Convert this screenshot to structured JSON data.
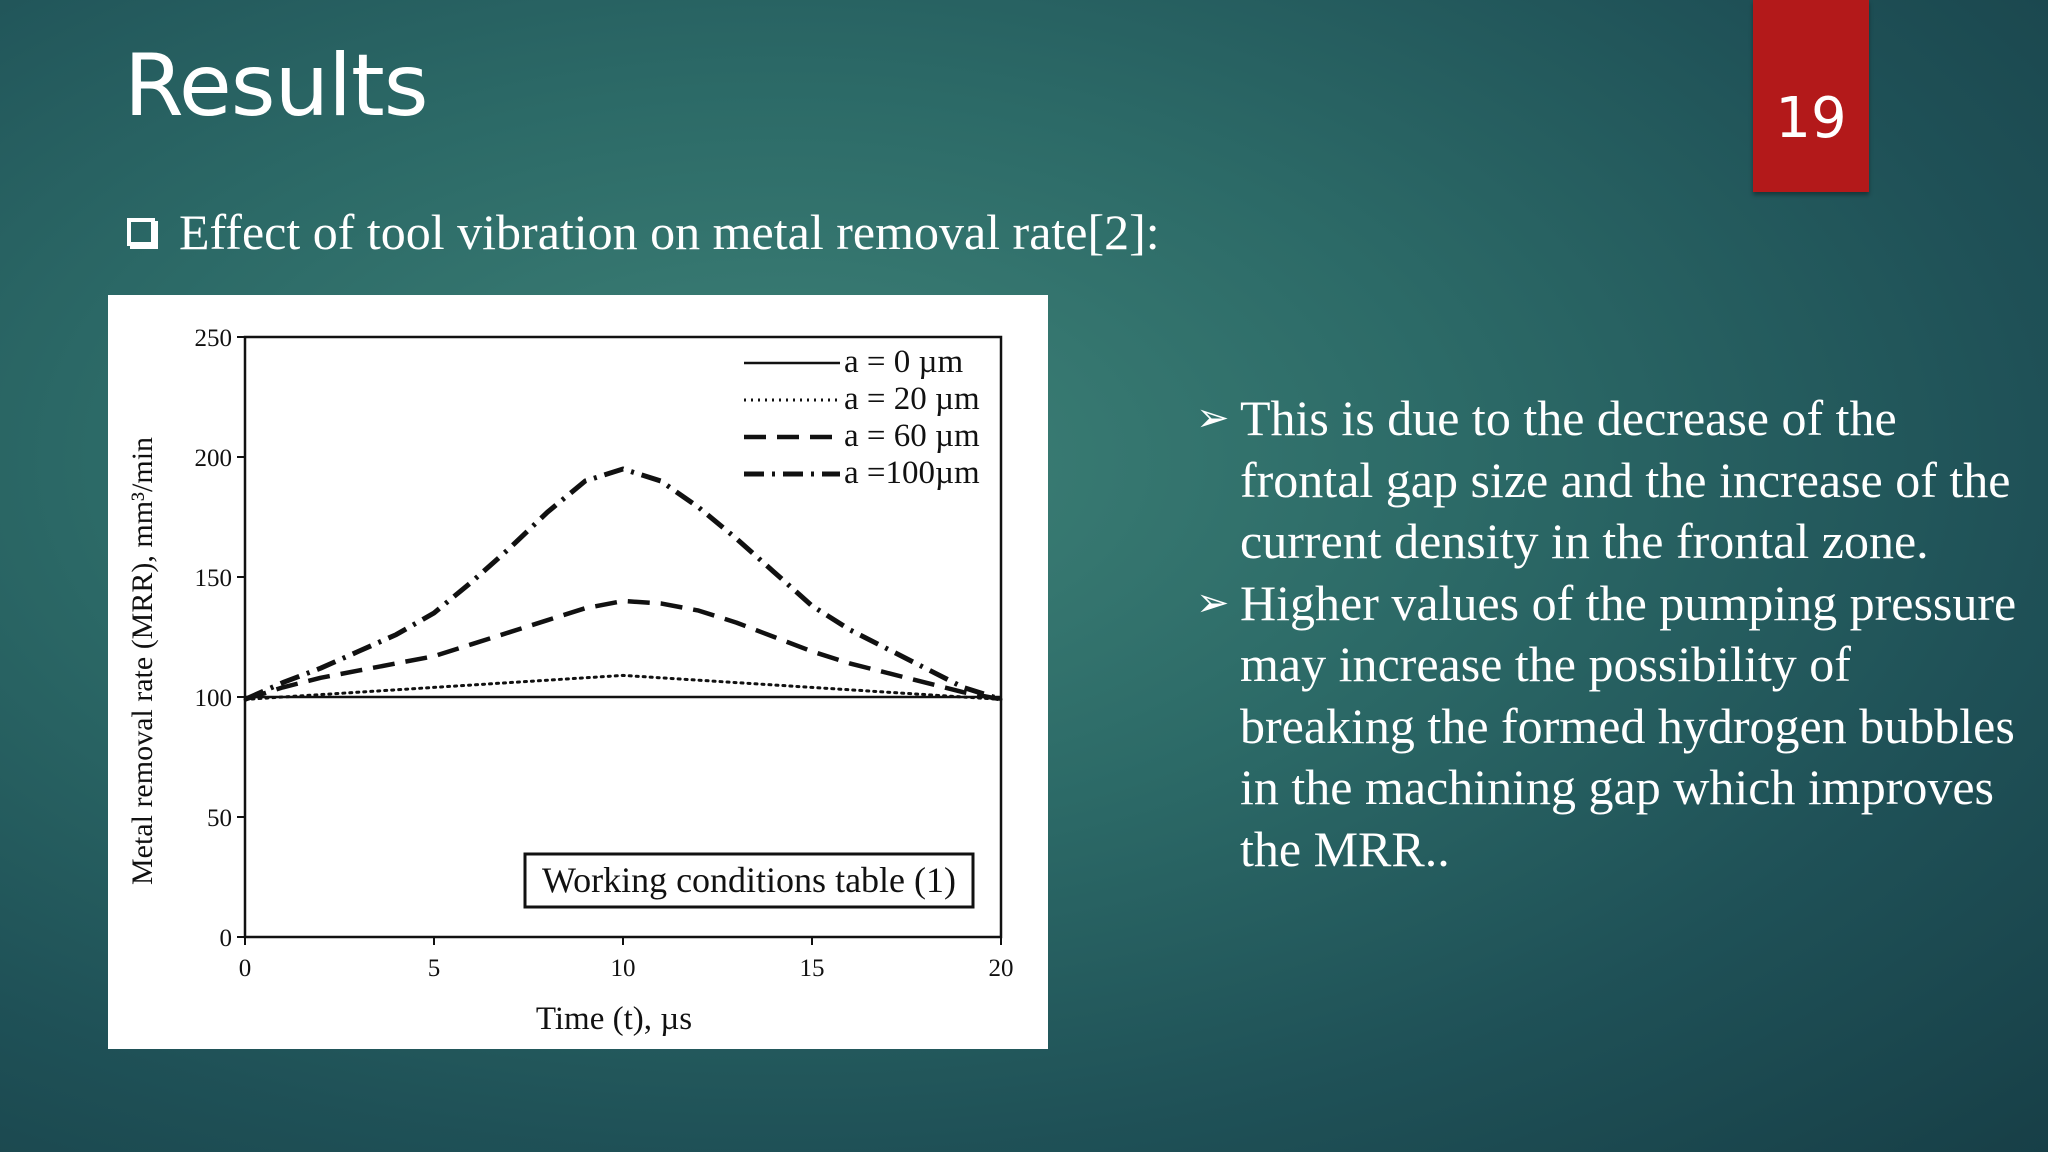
{
  "slide": {
    "title": "Results",
    "page_number": "19",
    "subheading": "Effect of tool vibration on metal removal rate[2]:",
    "bullets": [
      {
        "text": "This is due to the decrease of the frontal gap size and the increase of the current density in the frontal zone."
      },
      {
        "text": "Higher values of the pumping pressure may increase the possibility of breaking the formed hydrogen bubbles in the machining gap which improves the MRR.."
      }
    ],
    "icons": {
      "subheading": "checkbox-icon",
      "bullet": "arrow-icon"
    },
    "colors": {
      "badge": "#b3191a",
      "text": "#ffffff"
    }
  },
  "chart_data": {
    "type": "line",
    "xlabel": "Time (t), µs",
    "ylabel": "Metal removal rate (MRR), mm³/min",
    "xlim": [
      0,
      20
    ],
    "ylim": [
      0,
      250
    ],
    "x_ticks": [
      0,
      5,
      10,
      15,
      20
    ],
    "y_ticks": [
      0,
      50,
      100,
      150,
      200,
      250
    ],
    "grid": false,
    "legend_position": "top-right",
    "annotation": "Working conditions table (1)",
    "x": [
      0,
      1,
      2,
      3,
      4,
      5,
      6,
      7,
      8,
      9,
      10,
      11,
      12,
      13,
      14,
      15,
      16,
      17,
      18,
      19,
      20
    ],
    "series": [
      {
        "name": "a = 0   µm",
        "style": "solid",
        "values": [
          100,
          100,
          100,
          100,
          100,
          100,
          100,
          100,
          100,
          100,
          100,
          100,
          100,
          100,
          100,
          100,
          100,
          100,
          100,
          100,
          100
        ]
      },
      {
        "name": "a = 20 µm",
        "style": "dotted",
        "values": [
          99,
          100,
          101,
          102,
          103,
          104,
          105,
          106,
          107,
          108,
          109,
          108,
          107,
          106,
          105,
          104,
          103,
          102,
          101,
          100,
          99
        ]
      },
      {
        "name": "a = 60 µm",
        "style": "dashed",
        "values": [
          99,
          104,
          108,
          111,
          114,
          117,
          122,
          127,
          132,
          137,
          140,
          139,
          136,
          131,
          125,
          119,
          114,
          110,
          106,
          102,
          99
        ]
      },
      {
        "name": "a =100µm",
        "style": "dashdot",
        "values": [
          99,
          106,
          112,
          119,
          126,
          135,
          148,
          162,
          177,
          190,
          195,
          190,
          179,
          166,
          152,
          138,
          128,
          120,
          112,
          104,
          99
        ]
      }
    ]
  }
}
